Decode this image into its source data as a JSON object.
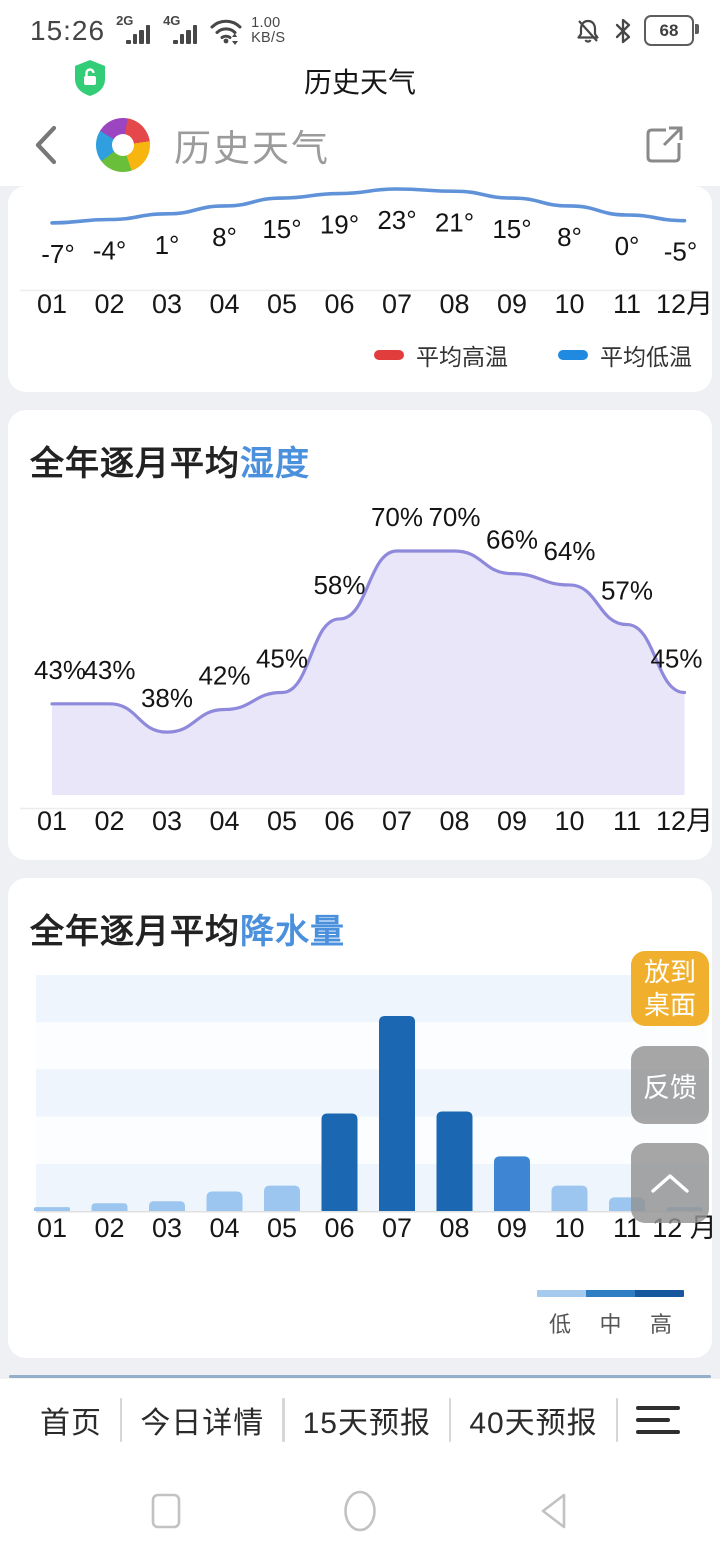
{
  "status_bar": {
    "time": "15:26",
    "network_badge_1": "2G",
    "network_badge_2": "4G",
    "net_speed_value": "1.00",
    "net_speed_unit": "KB/S",
    "battery_level": "68"
  },
  "page_title_bar": {
    "title": "历史天气"
  },
  "app_header": {
    "title": "历史天气"
  },
  "chart_data": [
    {
      "type": "line",
      "categories": [
        "01",
        "02",
        "03",
        "04",
        "05",
        "06",
        "07",
        "08",
        "09",
        "10",
        "11",
        "12月"
      ],
      "series": [
        {
          "name": "平均低温",
          "color": "#5f92d8",
          "unit": "°",
          "values": [
            -7,
            -4,
            1,
            8,
            15,
            19,
            23,
            21,
            15,
            8,
            0,
            -5
          ]
        }
      ],
      "legend": [
        {
          "label": "平均高温",
          "color": "#e23d3d"
        },
        {
          "label": "平均低温",
          "color": "#2089e0"
        }
      ],
      "note": "upper 平均高温 line scrolled out of view; only 平均低温 curve visible"
    },
    {
      "type": "area",
      "title_prefix": "全年逐月平均",
      "title_accent": "湿度",
      "categories": [
        "01",
        "02",
        "03",
        "04",
        "05",
        "06",
        "07",
        "08",
        "09",
        "10",
        "11",
        "12月"
      ],
      "values": [
        43,
        43,
        38,
        42,
        45,
        58,
        70,
        70,
        66,
        64,
        57,
        45
      ],
      "unit": "%",
      "line_color": "#8f89dc",
      "fill_color": "#e9e6f9"
    },
    {
      "type": "bar",
      "title_prefix": "全年逐月平均",
      "title_accent": "降水量",
      "categories": [
        "01",
        "02",
        "03",
        "04",
        "05",
        "06",
        "07",
        "08",
        "09",
        "10",
        "11",
        "12 月"
      ],
      "values": [
        2,
        4,
        5,
        10,
        13,
        50,
        100,
        51,
        28,
        13,
        7,
        2
      ],
      "value_note": "relative heights 0-100, no numeric axis shown",
      "levels": [
        "low",
        "low",
        "low",
        "low",
        "low",
        "high",
        "high",
        "high",
        "mid",
        "low",
        "low",
        "low"
      ],
      "level_colors": {
        "low": "#9cc5ef",
        "mid": "#3e86d3",
        "high": "#1b67b1"
      },
      "legend": {
        "labels": [
          "低",
          "中",
          "高"
        ],
        "colors": [
          "#a6c9ee",
          "#2f7dc3",
          "#16579d"
        ]
      }
    }
  ],
  "float_buttons": {
    "add_to_desktop_line1": "放到",
    "add_to_desktop_line2": "桌面",
    "feedback": "反馈"
  },
  "bottom_nav": {
    "items": [
      "首页",
      "今日详情",
      "15天预报",
      "40天预报"
    ]
  }
}
